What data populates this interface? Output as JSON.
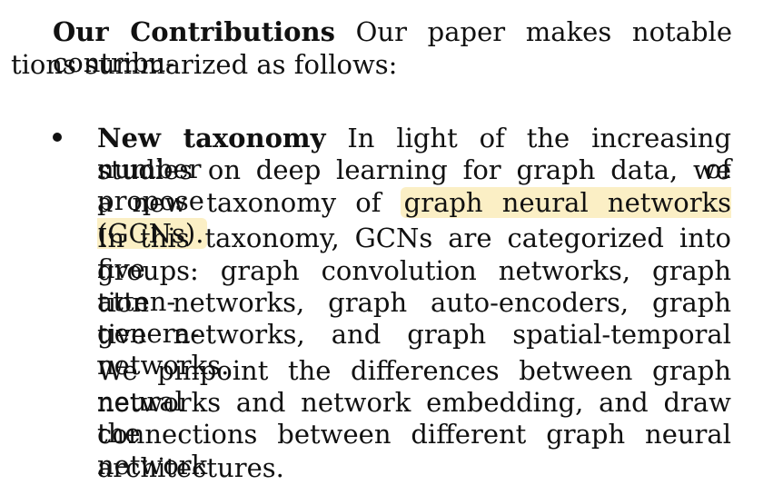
{
  "section": {
    "heading": "Our Contributions",
    "intro_line1": "Our paper makes notable contribu-",
    "intro_line2": "tions summarized as follows:"
  },
  "bullet": {
    "title": "New taxonomy",
    "line1_rest": "In light of the increasing number of",
    "line2": "studies on deep learning for graph data, we propose",
    "line3_prefix": "a new taxonomy of",
    "line3_highlight": "graph neural networks (GCNs).",
    "line4": "In this taxonomy, GCNs are categorized into five",
    "line5": "groups: graph convolution networks, graph atten-",
    "line6": "tion networks, graph auto-encoders, graph genera-",
    "line7": "tive networks, and graph spatial-temporal networks.",
    "line8": "We pinpoint the differences between graph neural",
    "line9": "networks and network embedding, and draw the",
    "line10": "connections between different graph neural network",
    "line11": "architectures.",
    "highlight_color": "#fbefc5"
  }
}
